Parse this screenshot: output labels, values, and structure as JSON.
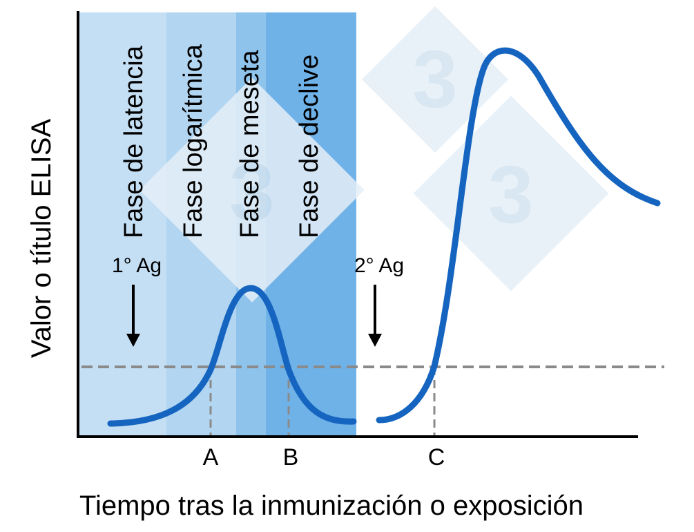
{
  "phases": [
    {
      "label": "Fase de latencia",
      "color": "#c4dff4"
    },
    {
      "label": "Fase logarítmica",
      "color": "#b2d5f1"
    },
    {
      "label": "Fase de meseta",
      "color": "#8ec3ec"
    },
    {
      "label": "Fase de declive",
      "color": "#6fb2e8"
    }
  ],
  "axes": {
    "y_title": "Valor o título ELISA",
    "x_title": "Tiempo tras la inmunización o exposición"
  },
  "antigens": {
    "primary": "1° Ag",
    "secondary": "2° Ag"
  },
  "threshold_points": [
    "A",
    "B",
    "C"
  ],
  "watermark": {
    "digit": "3",
    "color": "#e6eff7",
    "digit_color": "#d3e3f0"
  },
  "colors": {
    "curve": "#1565c0",
    "threshold_line": "#8a8a8a",
    "axis": "#000000"
  }
}
